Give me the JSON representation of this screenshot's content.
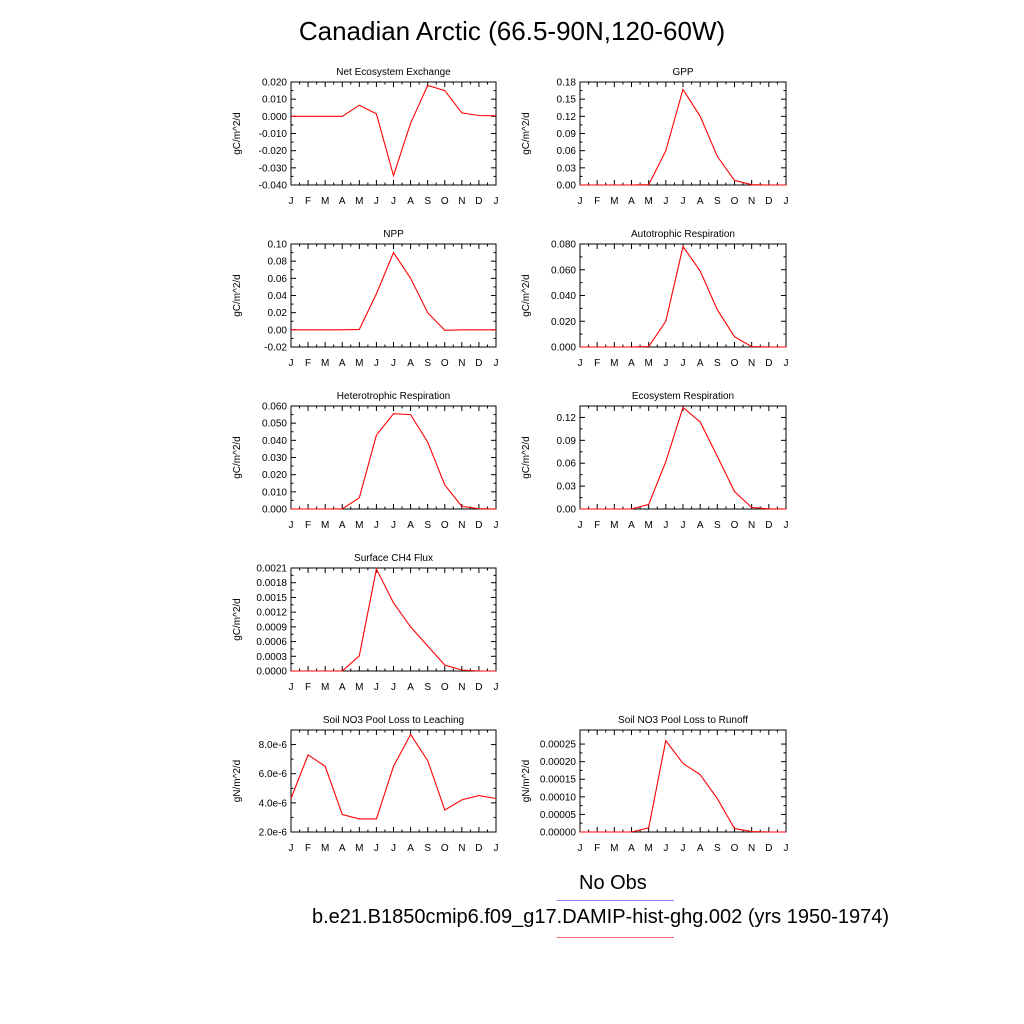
{
  "title": "Canadian Arctic (66.5-90N,120-60W)",
  "legend": [
    {
      "label": "No Obs",
      "color": "#8a8aff"
    },
    {
      "label": "b.e21.B1850cmip6.f09_g17.DAMIP-hist-ghg.002 (yrs 1950-1974)",
      "color": "#ff0000"
    }
  ],
  "chart_data": [
    {
      "type": "line",
      "title": "Net Ecosystem Exchange",
      "ylabel": "gC/m^2/d",
      "categories": [
        "J",
        "F",
        "M",
        "A",
        "M",
        "J",
        "J",
        "A",
        "S",
        "O",
        "N",
        "D",
        "J"
      ],
      "ylim": [
        -0.04,
        0.02
      ],
      "yticks": [
        -0.04,
        -0.03,
        -0.02,
        -0.01,
        0.0,
        0.01,
        0.02
      ],
      "ytick_labels": [
        "-0.040",
        "-0.030",
        "-0.020",
        "-0.010",
        "0.000",
        "0.010",
        "0.020"
      ],
      "series": [
        {
          "color": "#ff0000",
          "values": [
            0.0,
            0.0,
            0.0,
            0.0,
            0.0065,
            0.0015,
            -0.0345,
            -0.004,
            0.018,
            0.015,
            0.002,
            0.0005,
            0.0003
          ]
        }
      ]
    },
    {
      "type": "line",
      "title": "GPP",
      "ylabel": "gC/m^2/d",
      "categories": [
        "J",
        "F",
        "M",
        "A",
        "M",
        "J",
        "J",
        "A",
        "S",
        "O",
        "N",
        "D",
        "J"
      ],
      "ylim": [
        0,
        0.18
      ],
      "yticks": [
        0,
        0.03,
        0.06,
        0.09,
        0.12,
        0.15,
        0.18
      ],
      "ytick_labels": [
        "0.00",
        "0.03",
        "0.06",
        "0.09",
        "0.12",
        "0.15",
        "0.18"
      ],
      "series": [
        {
          "color": "#ff0000",
          "values": [
            0,
            0,
            0,
            0,
            0.0005,
            0.06,
            0.167,
            0.12,
            0.05,
            0.008,
            0.0005,
            0,
            0
          ]
        }
      ]
    },
    {
      "type": "line",
      "title": "NPP",
      "ylabel": "gC/m^2/d",
      "categories": [
        "J",
        "F",
        "M",
        "A",
        "M",
        "J",
        "J",
        "A",
        "S",
        "O",
        "N",
        "D",
        "J"
      ],
      "ylim": [
        -0.02,
        0.1
      ],
      "yticks": [
        -0.02,
        0,
        0.02,
        0.04,
        0.06,
        0.08,
        0.1
      ],
      "ytick_labels": [
        "-0.02",
        "0.00",
        "0.02",
        "0.04",
        "0.06",
        "0.08",
        "0.10"
      ],
      "series": [
        {
          "color": "#ff0000",
          "values": [
            0,
            0,
            0,
            0,
            0.0005,
            0.042,
            0.09,
            0.06,
            0.02,
            -0.0005,
            0,
            0,
            0
          ]
        }
      ]
    },
    {
      "type": "line",
      "title": "Autotrophic Respiration",
      "ylabel": "gC/m^2/d",
      "categories": [
        "J",
        "F",
        "M",
        "A",
        "M",
        "J",
        "J",
        "A",
        "S",
        "O",
        "N",
        "D",
        "J"
      ],
      "ylim": [
        0,
        0.08
      ],
      "yticks": [
        0,
        0.02,
        0.04,
        0.06,
        0.08
      ],
      "ytick_labels": [
        "0.000",
        "0.020",
        "0.040",
        "0.060",
        "0.080"
      ],
      "series": [
        {
          "color": "#ff0000",
          "values": [
            0,
            0,
            0,
            0,
            0.0003,
            0.02,
            0.078,
            0.059,
            0.029,
            0.008,
            0.0003,
            0,
            0
          ]
        }
      ]
    },
    {
      "type": "line",
      "title": "Heterotrophic Respiration",
      "ylabel": "gC/m^2/d",
      "categories": [
        "J",
        "F",
        "M",
        "A",
        "M",
        "J",
        "J",
        "A",
        "S",
        "O",
        "N",
        "D",
        "J"
      ],
      "ylim": [
        0,
        0.06
      ],
      "yticks": [
        0,
        0.01,
        0.02,
        0.03,
        0.04,
        0.05,
        0.06
      ],
      "ytick_labels": [
        "0.000",
        "0.010",
        "0.020",
        "0.030",
        "0.040",
        "0.050",
        "0.060"
      ],
      "series": [
        {
          "color": "#ff0000",
          "values": [
            0,
            0,
            0,
            0.0001,
            0.0065,
            0.043,
            0.0555,
            0.055,
            0.039,
            0.014,
            0.0015,
            0.0002,
            0
          ]
        }
      ]
    },
    {
      "type": "line",
      "title": "Ecosystem Respiration",
      "ylabel": "gC/m^2/d",
      "categories": [
        "J",
        "F",
        "M",
        "A",
        "M",
        "J",
        "J",
        "A",
        "S",
        "O",
        "N",
        "D",
        "J"
      ],
      "ylim": [
        0,
        0.135
      ],
      "yticks": [
        0,
        0.03,
        0.06,
        0.09,
        0.12
      ],
      "ytick_labels": [
        "0.00",
        "0.03",
        "0.06",
        "0.09",
        "0.12"
      ],
      "series": [
        {
          "color": "#ff0000",
          "values": [
            0,
            0,
            0,
            0,
            0.006,
            0.062,
            0.133,
            0.114,
            0.069,
            0.023,
            0.002,
            0.0003,
            0
          ]
        }
      ]
    },
    {
      "type": "line",
      "title": "Surface CH4 Flux",
      "ylabel": "gC/m^2/d",
      "categories": [
        "J",
        "F",
        "M",
        "A",
        "M",
        "J",
        "J",
        "A",
        "S",
        "O",
        "N",
        "D",
        "J"
      ],
      "ylim": [
        0,
        0.0021
      ],
      "yticks": [
        0,
        0.0003,
        0.0006,
        0.0009,
        0.0012,
        0.0015,
        0.0018,
        0.0021
      ],
      "ytick_labels": [
        "0.0000",
        "0.0003",
        "0.0006",
        "0.0009",
        "0.0012",
        "0.0015",
        "0.0018",
        "0.0021"
      ],
      "series": [
        {
          "color": "#ff0000",
          "values": [
            0,
            0,
            0,
            0,
            0.00031,
            0.00208,
            0.00139,
            0.0009,
            0.00051,
            0.00012,
            2e-05,
            0,
            0
          ]
        }
      ]
    },
    {
      "type": "line",
      "title": "Soil NO3 Pool Loss to Leaching",
      "ylabel": "gN/m^2/d",
      "categories": [
        "J",
        "F",
        "M",
        "A",
        "M",
        "J",
        "J",
        "A",
        "S",
        "O",
        "N",
        "D",
        "J"
      ],
      "ylim": [
        2e-06,
        9e-06
      ],
      "yticks": [
        2e-06,
        4e-06,
        6e-06,
        8e-06
      ],
      "ytick_labels": [
        "2.0e-6",
        "4.0e-6",
        "6.0e-6",
        "8.0e-6"
      ],
      "series": [
        {
          "color": "#ff0000",
          "values": [
            4.3e-06,
            7.3e-06,
            6.5e-06,
            3.2e-06,
            2.9e-06,
            2.9e-06,
            6.5e-06,
            8.7e-06,
            6.9e-06,
            3.5e-06,
            4.2e-06,
            4.5e-06,
            4.3e-06
          ]
        }
      ]
    },
    {
      "type": "line",
      "title": "Soil NO3 Pool Loss to Runoff",
      "ylabel": "gN/m^2/d",
      "categories": [
        "J",
        "F",
        "M",
        "A",
        "M",
        "J",
        "J",
        "A",
        "S",
        "O",
        "N",
        "D",
        "J"
      ],
      "ylim": [
        0,
        0.00029
      ],
      "yticks": [
        0,
        5e-05,
        0.0001,
        0.00015,
        0.0002,
        0.00025
      ],
      "ytick_labels": [
        "0.00000",
        "0.00005",
        "0.00010",
        "0.00015",
        "0.00020",
        "0.00025"
      ],
      "series": [
        {
          "color": "#ff0000",
          "values": [
            0,
            0,
            0,
            0,
            1.2e-05,
            0.00026,
            0.000195,
            0.000163,
            9.5e-05,
            1e-05,
            1e-06,
            0,
            0
          ]
        }
      ]
    }
  ]
}
